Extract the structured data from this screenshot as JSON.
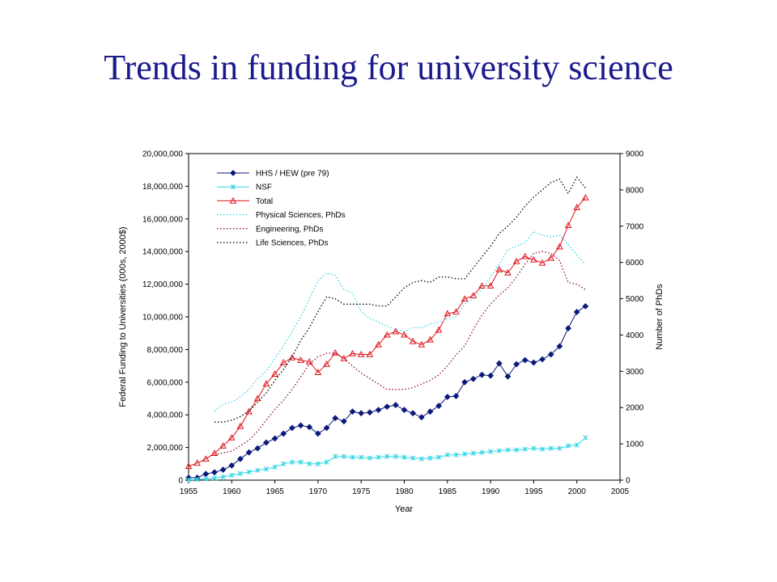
{
  "slide": {
    "title": "Trends in funding for university science"
  },
  "colors": {
    "hhs": "#0b1a7a",
    "nsf": "#33d6e6",
    "total": "#e0141c",
    "phys": "#33d6e6",
    "eng": "#8b1026",
    "life": "#000000"
  },
  "chart_data": {
    "type": "line",
    "xlabel": "Year",
    "ylabel": "Federal Funding to Universities (000s, 2000$)",
    "y2label": "Number of PhDs",
    "xlim": [
      1955,
      2005
    ],
    "ylim": [
      0,
      20000000
    ],
    "y2lim": [
      0,
      9000
    ],
    "x_ticks": [
      "1955",
      "1960",
      "1965",
      "1970",
      "1975",
      "1980",
      "1985",
      "1990",
      "1995",
      "2000",
      "2005"
    ],
    "y_ticks": [
      "0",
      "2,000,000",
      "4,000,000",
      "6,000,000",
      "8,000,000",
      "10,000,000",
      "12,000,000",
      "14,000,000",
      "16,000,000",
      "18,000,000",
      "20,000,000"
    ],
    "y2_ticks": [
      "0",
      "1000",
      "2000",
      "3000",
      "4000",
      "5000",
      "6000",
      "7000",
      "8000",
      "9000"
    ],
    "legend_position": "top-left",
    "series": [
      {
        "name": "HHS / HEW (pre 79)",
        "axis": "left",
        "style": "diamond-line",
        "color_key": "hhs",
        "x": [
          1955,
          1956,
          1957,
          1958,
          1959,
          1960,
          1961,
          1962,
          1963,
          1964,
          1965,
          1966,
          1967,
          1968,
          1969,
          1970,
          1971,
          1972,
          1973,
          1974,
          1975,
          1976,
          1977,
          1978,
          1979,
          1980,
          1981,
          1982,
          1983,
          1984,
          1985,
          1986,
          1987,
          1988,
          1989,
          1990,
          1991,
          1992,
          1993,
          1994,
          1995,
          1996,
          1997,
          1998,
          1999,
          2000,
          2001
        ],
        "values": [
          150000,
          150000,
          380000,
          480000,
          640000,
          900000,
          1300000,
          1700000,
          1950000,
          2300000,
          2550000,
          2850000,
          3200000,
          3350000,
          3250000,
          2850000,
          3200000,
          3800000,
          3600000,
          4200000,
          4100000,
          4150000,
          4300000,
          4500000,
          4600000,
          4300000,
          4100000,
          3850000,
          4200000,
          4550000,
          5100000,
          5150000,
          6000000,
          6200000,
          6450000,
          6400000,
          7150000,
          6350000,
          7100000,
          7350000,
          7200000,
          7400000,
          7700000,
          8200000,
          9300000,
          10300000,
          10650000
        ]
      },
      {
        "name": "NSF",
        "axis": "left",
        "style": "star-line",
        "color_key": "nsf",
        "x": [
          1955,
          1956,
          1957,
          1958,
          1959,
          1960,
          1961,
          1962,
          1963,
          1964,
          1965,
          1966,
          1967,
          1968,
          1969,
          1970,
          1971,
          1972,
          1973,
          1974,
          1975,
          1976,
          1977,
          1978,
          1979,
          1980,
          1981,
          1982,
          1983,
          1984,
          1985,
          1986,
          1987,
          1988,
          1989,
          1990,
          1991,
          1992,
          1993,
          1994,
          1995,
          1996,
          1997,
          1998,
          1999,
          2000,
          2001
        ],
        "values": [
          20000,
          40000,
          80000,
          120000,
          200000,
          300000,
          400000,
          500000,
          600000,
          680000,
          800000,
          1000000,
          1100000,
          1100000,
          1000000,
          1000000,
          1100000,
          1450000,
          1450000,
          1400000,
          1400000,
          1350000,
          1400000,
          1450000,
          1450000,
          1400000,
          1350000,
          1300000,
          1350000,
          1400000,
          1550000,
          1550000,
          1600000,
          1650000,
          1700000,
          1750000,
          1800000,
          1850000,
          1850000,
          1900000,
          1950000,
          1900000,
          1950000,
          1950000,
          2100000,
          2150000,
          2600000
        ]
      },
      {
        "name": "Total",
        "axis": "left",
        "style": "triangle-line",
        "color_key": "total",
        "x": [
          1955,
          1956,
          1957,
          1958,
          1959,
          1960,
          1961,
          1962,
          1963,
          1964,
          1965,
          1966,
          1967,
          1968,
          1969,
          1970,
          1971,
          1972,
          1973,
          1974,
          1975,
          1976,
          1977,
          1978,
          1979,
          1980,
          1981,
          1982,
          1983,
          1984,
          1985,
          1986,
          1987,
          1988,
          1989,
          1990,
          1991,
          1992,
          1993,
          1994,
          1995,
          1996,
          1997,
          1998,
          1999,
          2000,
          2001
        ],
        "values": [
          850000,
          1050000,
          1300000,
          1650000,
          2100000,
          2600000,
          3300000,
          4200000,
          5000000,
          5900000,
          6500000,
          7200000,
          7500000,
          7350000,
          7250000,
          6600000,
          7100000,
          7800000,
          7450000,
          7750000,
          7700000,
          7700000,
          8300000,
          8900000,
          9100000,
          8900000,
          8500000,
          8300000,
          8600000,
          9200000,
          10200000,
          10300000,
          11100000,
          11300000,
          11900000,
          11900000,
          12900000,
          12700000,
          13400000,
          13700000,
          13500000,
          13300000,
          13600000,
          14300000,
          15600000,
          16700000,
          17300000
        ]
      },
      {
        "name": "Physical Sciences, PhDs",
        "axis": "right",
        "style": "dotted",
        "color_key": "phys",
        "x": [
          1958,
          1959,
          1960,
          1961,
          1962,
          1963,
          1964,
          1965,
          1966,
          1967,
          1968,
          1969,
          1970,
          1971,
          1972,
          1973,
          1974,
          1975,
          1976,
          1977,
          1978,
          1979,
          1980,
          1981,
          1982,
          1983,
          1984,
          1985,
          1986,
          1987,
          1988,
          1989,
          1990,
          1991,
          1992,
          1993,
          1994,
          1995,
          1996,
          1997,
          1998,
          1999,
          2000,
          2001
        ],
        "values": [
          1900,
          2100,
          2150,
          2300,
          2500,
          2800,
          3000,
          3350,
          3700,
          4100,
          4500,
          5000,
          5500,
          5700,
          5650,
          5250,
          5150,
          4650,
          4450,
          4350,
          4250,
          4150,
          4100,
          4200,
          4200,
          4300,
          4350,
          4450,
          4500,
          4850,
          5000,
          5250,
          5600,
          5950,
          6350,
          6450,
          6550,
          6850,
          6750,
          6700,
          6750,
          6500,
          6200,
          5950
        ]
      },
      {
        "name": "Engineering, PhDs",
        "axis": "right",
        "style": "dotted",
        "color_key": "eng",
        "x": [
          1958,
          1959,
          1960,
          1961,
          1962,
          1963,
          1964,
          1965,
          1966,
          1967,
          1968,
          1969,
          1970,
          1971,
          1972,
          1973,
          1974,
          1975,
          1976,
          1977,
          1978,
          1979,
          1980,
          1981,
          1982,
          1983,
          1984,
          1985,
          1986,
          1987,
          1988,
          1989,
          1990,
          1991,
          1992,
          1993,
          1994,
          1995,
          1996,
          1997,
          1998,
          1999,
          2000,
          2001
        ],
        "values": [
          700,
          750,
          800,
          950,
          1100,
          1350,
          1650,
          1950,
          2200,
          2500,
          2850,
          3200,
          3400,
          3500,
          3500,
          3350,
          3150,
          2950,
          2800,
          2650,
          2500,
          2500,
          2500,
          2550,
          2650,
          2750,
          2900,
          3150,
          3450,
          3700,
          4150,
          4550,
          4850,
          5100,
          5300,
          5600,
          5950,
          6250,
          6300,
          6250,
          6050,
          5450,
          5400,
          5250
        ]
      },
      {
        "name": "Life Sciences, PhDs",
        "axis": "right",
        "style": "dotted",
        "color_key": "life",
        "x": [
          1958,
          1959,
          1960,
          1961,
          1962,
          1963,
          1964,
          1965,
          1966,
          1967,
          1968,
          1969,
          1970,
          1971,
          1972,
          1973,
          1974,
          1975,
          1976,
          1977,
          1978,
          1979,
          1980,
          1981,
          1982,
          1983,
          1984,
          1985,
          1986,
          1987,
          1988,
          1989,
          1990,
          1991,
          1992,
          1993,
          1994,
          1995,
          1996,
          1997,
          1998,
          1999,
          2000,
          2001
        ],
        "values": [
          1600,
          1600,
          1650,
          1750,
          1900,
          2150,
          2400,
          2750,
          3050,
          3400,
          3850,
          4200,
          4650,
          5050,
          5000,
          4850,
          4850,
          4850,
          4850,
          4800,
          4800,
          5050,
          5300,
          5450,
          5500,
          5450,
          5600,
          5600,
          5550,
          5550,
          5850,
          6150,
          6450,
          6800,
          7000,
          7250,
          7550,
          7800,
          8000,
          8200,
          8300,
          7900,
          8350,
          8050
        ]
      }
    ]
  }
}
